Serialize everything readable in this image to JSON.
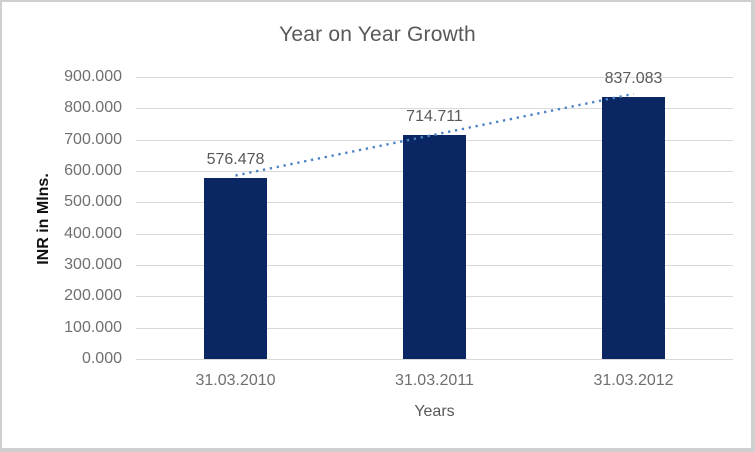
{
  "chart_data": {
    "type": "bar",
    "title": "Year on Year Growth",
    "xlabel": "Years",
    "ylabel": "INR in Mlns.",
    "categories": [
      "31.03.2010",
      "31.03.2011",
      "31.03.2012"
    ],
    "values": [
      576.478,
      714.711,
      837.083
    ],
    "data_labels": [
      "576.478",
      "714.711",
      "837.083"
    ],
    "ylim": [
      0,
      900
    ],
    "ytick_step": 100,
    "ytick_labels": [
      "0.000",
      "100.000",
      "200.000",
      "300.000",
      "400.000",
      "500.000",
      "600.000",
      "700.000",
      "800.000",
      "900.000"
    ],
    "grid": true,
    "legend_position": "none",
    "trendline": {
      "type": "linear",
      "style": "dotted"
    },
    "colors": {
      "bar": "#0a2763",
      "trendline": "#4d82c4",
      "gridline": "#d9d9d9",
      "title_text": "#595959",
      "tick_text": "#6f6f6f",
      "data_label_text": "#595959",
      "axis_title_text": "#111111",
      "frame": "#cfcfcf",
      "background": "#ffffff"
    }
  }
}
